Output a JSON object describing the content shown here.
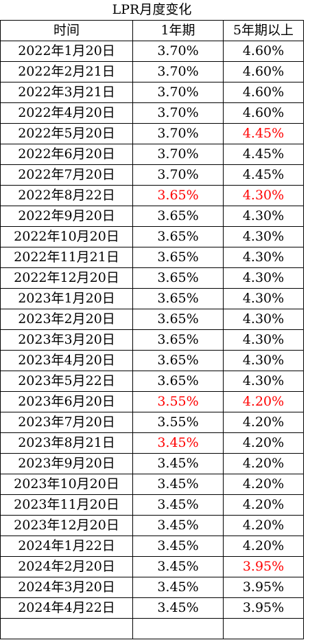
{
  "title": "LPR月度变化",
  "headers": [
    "时间",
    "1年期",
    "5年期以上"
  ],
  "rows": [
    {
      "date": "2022年1月20日",
      "y1": "3.70%",
      "y5": "4.60%",
      "y1_red": false,
      "y5_red": false
    },
    {
      "date": "2022年2月21日",
      "y1": "3.70%",
      "y5": "4.60%",
      "y1_red": false,
      "y5_red": false
    },
    {
      "date": "2022年3月21日",
      "y1": "3.70%",
      "y5": "4.60%",
      "y1_red": false,
      "y5_red": false
    },
    {
      "date": "2022年4月20日",
      "y1": "3.70%",
      "y5": "4.60%",
      "y1_red": false,
      "y5_red": false
    },
    {
      "date": "2022年5月20日",
      "y1": "3.70%",
      "y5": "4.45%",
      "y1_red": false,
      "y5_red": true
    },
    {
      "date": "2022年6月20日",
      "y1": "3.70%",
      "y5": "4.45%",
      "y1_red": false,
      "y5_red": false
    },
    {
      "date": "2022年7月20日",
      "y1": "3.70%",
      "y5": "4.45%",
      "y1_red": false,
      "y5_red": false
    },
    {
      "date": "2022年8月22日",
      "y1": "3.65%",
      "y5": "4.30%",
      "y1_red": true,
      "y5_red": true
    },
    {
      "date": "2022年9月20日",
      "y1": "3.65%",
      "y5": "4.30%",
      "y1_red": false,
      "y5_red": false
    },
    {
      "date": "2022年10月20日",
      "y1": "3.65%",
      "y5": "4.30%",
      "y1_red": false,
      "y5_red": false
    },
    {
      "date": "2022年11月21日",
      "y1": "3.65%",
      "y5": "4.30%",
      "y1_red": false,
      "y5_red": false
    },
    {
      "date": "2022年12月20日",
      "y1": "3.65%",
      "y5": "4.30%",
      "y1_red": false,
      "y5_red": false
    },
    {
      "date": "2023年1月20日",
      "y1": "3.65%",
      "y5": "4.30%",
      "y1_red": false,
      "y5_red": false
    },
    {
      "date": "2023年2月20日",
      "y1": "3.65%",
      "y5": "4.30%",
      "y1_red": false,
      "y5_red": false
    },
    {
      "date": "2023年3月20日",
      "y1": "3.65%",
      "y5": "4.30%",
      "y1_red": false,
      "y5_red": false
    },
    {
      "date": "2023年4月20日",
      "y1": "3.65%",
      "y5": "4.30%",
      "y1_red": false,
      "y5_red": false
    },
    {
      "date": "2023年5月22日",
      "y1": "3.65%",
      "y5": "4.30%",
      "y1_red": false,
      "y5_red": false
    },
    {
      "date": "2023年6月20日",
      "y1": "3.55%",
      "y5": "4.20%",
      "y1_red": true,
      "y5_red": true
    },
    {
      "date": "2023年7月20日",
      "y1": "3.55%",
      "y5": "4.20%",
      "y1_red": false,
      "y5_red": false
    },
    {
      "date": "2023年8月21日",
      "y1": "3.45%",
      "y5": "4.20%",
      "y1_red": true,
      "y5_red": false
    },
    {
      "date": "2023年9月20日",
      "y1": "3.45%",
      "y5": "4.20%",
      "y1_red": false,
      "y5_red": false
    },
    {
      "date": "2023年10月20日",
      "y1": "3.45%",
      "y5": "4.20%",
      "y1_red": false,
      "y5_red": false
    },
    {
      "date": "2023年11月20日",
      "y1": "3.45%",
      "y5": "4.20%",
      "y1_red": false,
      "y5_red": false
    },
    {
      "date": "2023年12月20日",
      "y1": "3.45%",
      "y5": "4.20%",
      "y1_red": false,
      "y5_red": false
    },
    {
      "date": "2024年1月22日",
      "y1": "3.45%",
      "y5": "4.20%",
      "y1_red": false,
      "y5_red": false
    },
    {
      "date": "2024年2月20日",
      "y1": "3.45%",
      "y5": "3.95%",
      "y1_red": false,
      "y5_red": true
    },
    {
      "date": "2024年3月20日",
      "y1": "3.45%",
      "y5": "3.95%",
      "y1_red": false,
      "y5_red": false
    },
    {
      "date": "2024年4月22日",
      "y1": "3.45%",
      "y5": "3.95%",
      "y1_red": false,
      "y5_red": false
    }
  ],
  "colors": {
    "text": "#000000",
    "highlight": "#ff0000",
    "border": "#000000",
    "background": "#ffffff"
  }
}
